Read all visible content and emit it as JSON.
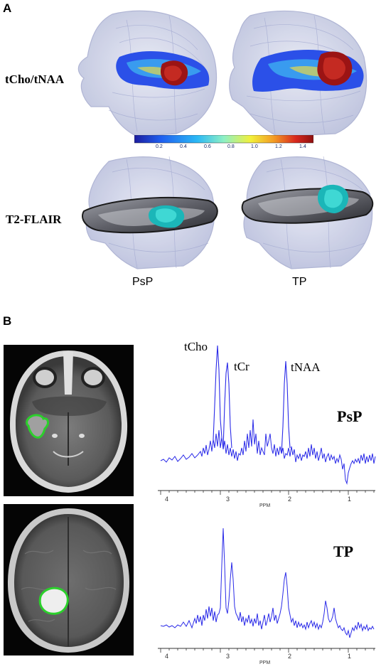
{
  "panel_a": {
    "letter": "A",
    "rows": [
      "tCho/tNAA",
      "T2-FLAIR"
    ],
    "columns": [
      "PsP",
      "TP"
    ],
    "colorbar": {
      "ticks": [
        "0.2",
        "0.4",
        "0.6",
        "0.8",
        "1.0",
        "1.2",
        "1.4"
      ],
      "colors": [
        "#1c1c9e",
        "#1f5ff0",
        "#2bb8f5",
        "#8ef0c4",
        "#f2f03a",
        "#f39a24",
        "#d8281e",
        "#8e1010"
      ]
    }
  },
  "panel_b": {
    "letter": "B",
    "spectra": [
      {
        "condition": "PsP",
        "peaks": [
          "tCho",
          "tCr",
          "tNAA"
        ],
        "axis_title": "PPM",
        "ticks": [
          "4",
          "3",
          "2",
          "1"
        ]
      },
      {
        "condition": "TP",
        "peaks": [],
        "axis_title": "PPM",
        "ticks": [
          "4",
          "3",
          "2",
          "1"
        ]
      }
    ],
    "colors": {
      "spectrum": "#2a2ae8",
      "roi": "#2bd02b"
    }
  }
}
